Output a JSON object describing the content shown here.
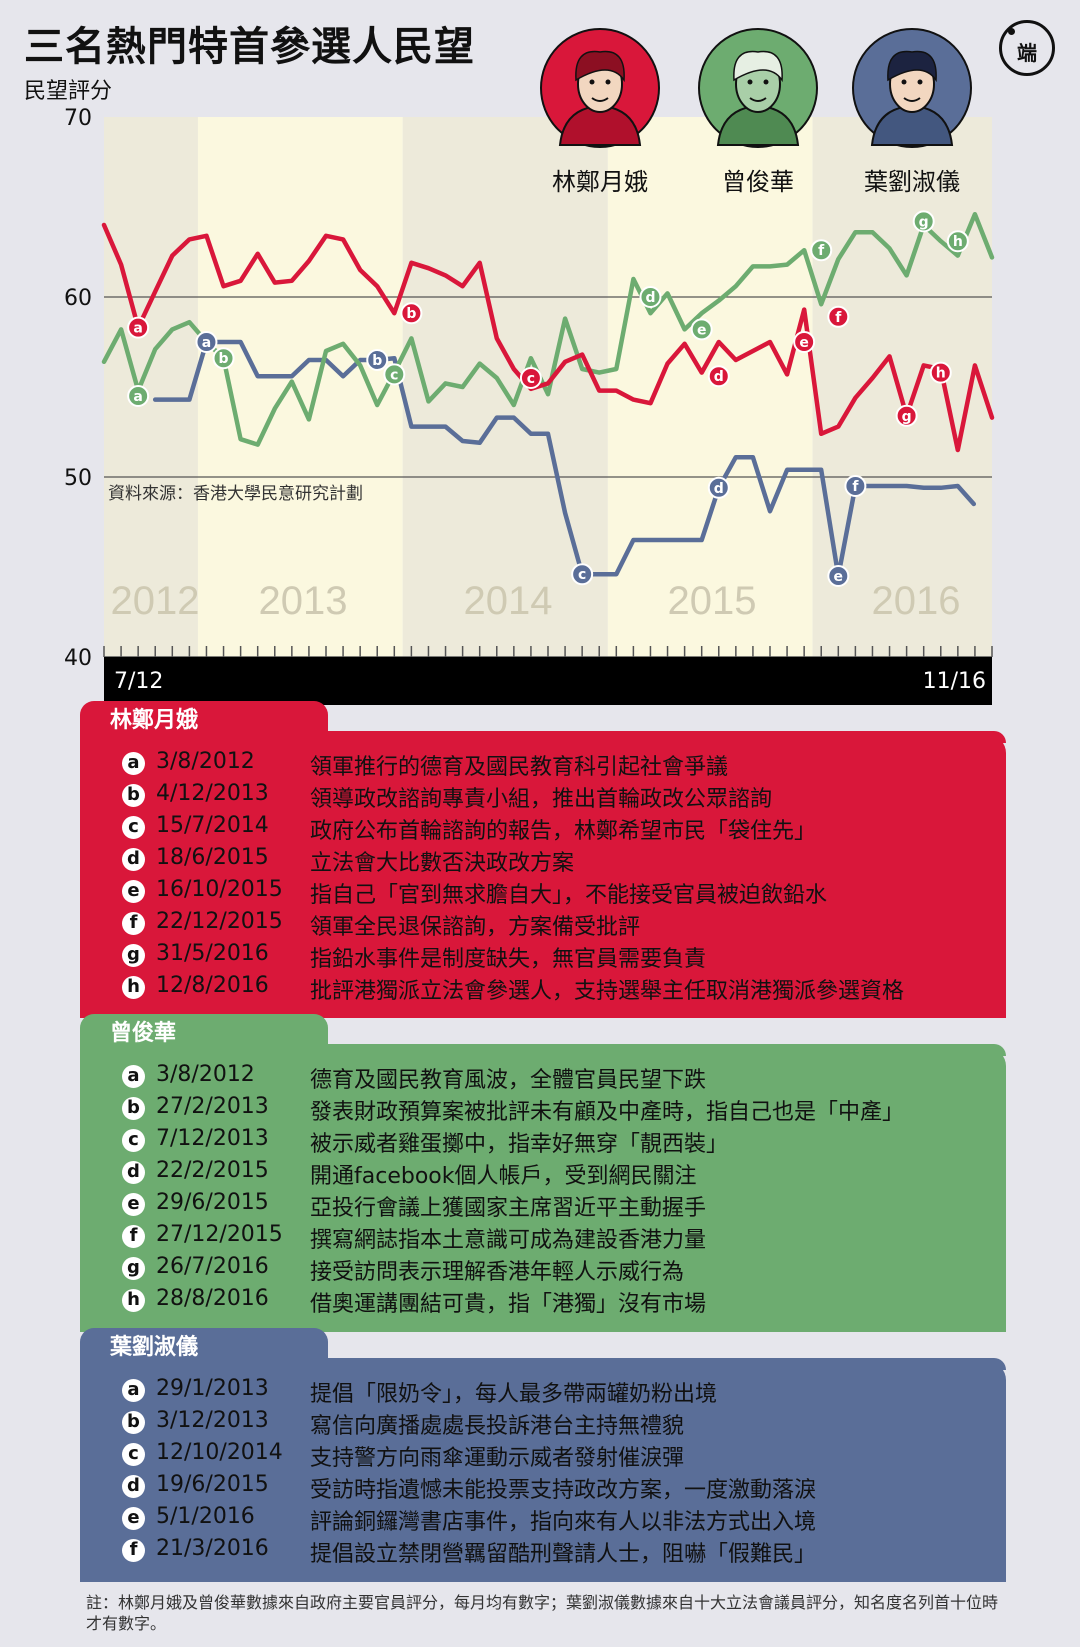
{
  "title": "三名熱門特首參選人民望",
  "logo_text": "端",
  "y_axis_label": "民望評分",
  "source": "資料來源：香港大學民意研究計劃",
  "footnote": "註：林鄭月娥及曾俊華數據來自政府主要官員評分，每月均有數字；葉劉淑儀數據來自十大立法會議員評分，知名度名列首十位時才有數字。",
  "colors": {
    "carrie": "#d9173a",
    "tsang": "#6dac70",
    "ip": "#5a6e98",
    "band_light": "#fbf8df",
    "band_dark": "#edeada"
  },
  "chart_data": {
    "type": "line",
    "ylabel": "民望評分",
    "ylim": [
      40,
      70
    ],
    "yticks": [
      40,
      50,
      60,
      70
    ],
    "x_start_label": "7/12",
    "x_end_label": "11/16",
    "year_labels": [
      "2012",
      "2013",
      "2014",
      "2015",
      "2016"
    ],
    "series": [
      {
        "name": "林鄭月娥",
        "color": "#d9173a",
        "values": [
          64.0,
          61.8,
          58.3,
          60.3,
          62.3,
          63.2,
          63.4,
          60.6,
          60.9,
          62.4,
          60.8,
          60.9,
          62.0,
          63.4,
          63.2,
          61.5,
          60.6,
          59.1,
          61.9,
          61.6,
          61.2,
          60.6,
          61.9,
          57.7,
          56.0,
          54.9,
          55.2,
          56.4,
          56.8,
          54.8,
          54.8,
          54.3,
          54.1,
          56.3,
          57.4,
          55.8,
          57.5,
          56.5,
          57.0,
          57.5,
          55.7,
          59.3,
          52.4,
          52.8,
          54.4,
          55.5,
          56.7,
          53.4,
          56.2,
          56.0,
          51.5,
          56.2,
          53.3
        ]
      },
      {
        "name": "曾俊華",
        "color": "#6dac70",
        "values": [
          56.4,
          58.2,
          54.8,
          57.1,
          58.2,
          58.6,
          57.5,
          56.6,
          52.1,
          51.8,
          53.8,
          55.3,
          53.2,
          57.0,
          57.4,
          56.2,
          54.0,
          55.8,
          57.7,
          54.2,
          55.2,
          55.0,
          56.3,
          55.5,
          54.0,
          56.6,
          54.6,
          58.8,
          56.0,
          55.8,
          56.0,
          61.0,
          59.1,
          60.2,
          58.2,
          59.1,
          59.8,
          60.6,
          61.7,
          61.7,
          61.8,
          62.6,
          59.6,
          62.1,
          63.6,
          63.6,
          62.7,
          61.2,
          64.0,
          63.1,
          62.3,
          64.6,
          62.2
        ]
      },
      {
        "name": "葉劉淑儀",
        "color": "#5a6e98",
        "values": [
          null,
          null,
          null,
          54.3,
          54.3,
          54.3,
          57.5,
          57.5,
          57.5,
          55.6,
          55.6,
          55.6,
          56.5,
          56.5,
          55.6,
          56.5,
          56.5,
          56.6,
          52.8,
          52.8,
          52.8,
          52.0,
          51.9,
          53.3,
          53.3,
          52.4,
          52.4,
          48.0,
          44.6,
          44.6,
          44.6,
          46.5,
          46.5,
          46.5,
          46.5,
          46.5,
          49.4,
          51.1,
          51.1,
          48.1,
          50.4,
          50.4,
          50.4,
          44.5,
          49.5,
          49.5,
          49.5,
          49.5,
          49.4,
          49.4,
          49.5,
          null,
          null
        ],
        "values_tail": [
          48.5
        ]
      }
    ],
    "event_markers": {
      "林鄭月娥": [
        [
          "a",
          2,
          58.3
        ],
        [
          "b",
          18,
          59.1
        ],
        [
          "c",
          25,
          55.5
        ],
        [
          "d",
          36,
          55.6
        ],
        [
          "e",
          41,
          57.5
        ],
        [
          "f",
          43,
          58.9
        ],
        [
          "g",
          47,
          53.4
        ],
        [
          "h",
          49,
          55.8
        ]
      ],
      "曾俊華": [
        [
          "a",
          2,
          54.5
        ],
        [
          "b",
          7,
          56.6
        ],
        [
          "c",
          17,
          55.7
        ],
        [
          "d",
          32,
          60.0
        ],
        [
          "e",
          35,
          58.2
        ],
        [
          "f",
          42,
          62.6
        ],
        [
          "g",
          48,
          64.2
        ],
        [
          "h",
          50,
          63.1
        ]
      ],
      "葉劉淑儀": [
        [
          "a",
          6,
          57.5
        ],
        [
          "b",
          16,
          56.5
        ],
        [
          "c",
          28,
          44.6
        ],
        [
          "d",
          36,
          49.4
        ],
        [
          "e",
          43,
          44.5
        ],
        [
          "f",
          44,
          49.5
        ]
      ]
    }
  },
  "candidates": [
    {
      "name": "林鄭月娥",
      "events": [
        {
          "key": "a",
          "date": "3/8/2012",
          "text": "領軍推行的德育及國民教育科引起社會爭議"
        },
        {
          "key": "b",
          "date": "4/12/2013",
          "text": "領導政改諮詢專責小組，推出首輪政改公眾諮詢"
        },
        {
          "key": "c",
          "date": "15/7/2014",
          "text": "政府公布首輪諮詢的報告，林鄭希望市民「袋住先」"
        },
        {
          "key": "d",
          "date": "18/6/2015",
          "text": "立法會大比數否決政改方案"
        },
        {
          "key": "e",
          "date": "16/10/2015",
          "text": "指自己「官到無求膽自大」，不能接受官員被迫飲鉛水"
        },
        {
          "key": "f",
          "date": "22/12/2015",
          "text": "領軍全民退保諮詢，方案備受批評"
        },
        {
          "key": "g",
          "date": "31/5/2016",
          "text": "指鉛水事件是制度缺失，無官員需要負責"
        },
        {
          "key": "h",
          "date": "12/8/2016",
          "text": "批評港獨派立法會參選人，支持選舉主任取消港獨派參選資格"
        }
      ]
    },
    {
      "name": "曾俊華",
      "events": [
        {
          "key": "a",
          "date": "3/8/2012",
          "text": "德育及國民教育風波，全體官員民望下跌"
        },
        {
          "key": "b",
          "date": "27/2/2013",
          "text": "發表財政預算案被批評未有顧及中產時，指自己也是「中產」"
        },
        {
          "key": "c",
          "date": "7/12/2013",
          "text": "被示威者雞蛋擲中，指幸好無穿「靚西裝」"
        },
        {
          "key": "d",
          "date": "22/2/2015",
          "text": "開通facebook個人帳戶，受到網民關注"
        },
        {
          "key": "e",
          "date": "29/6/2015",
          "text": "亞投行會議上獲國家主席習近平主動握手"
        },
        {
          "key": "f",
          "date": "27/12/2015",
          "text": "撰寫網誌指本土意識可成為建設香港力量"
        },
        {
          "key": "g",
          "date": "26/7/2016",
          "text": "接受訪問表示理解香港年輕人示威行為"
        },
        {
          "key": "h",
          "date": "28/8/2016",
          "text": "借奧運講團結可貴，指「港獨」沒有市場"
        }
      ]
    },
    {
      "name": "葉劉淑儀",
      "events": [
        {
          "key": "a",
          "date": "29/1/2013",
          "text": "提倡「限奶令」，每人最多帶兩罐奶粉出境"
        },
        {
          "key": "b",
          "date": "3/12/2013",
          "text": "寫信向廣播處處長投訴港台主持無禮貌"
        },
        {
          "key": "c",
          "date": "12/10/2014",
          "text": "支持警方向雨傘運動示威者發射催淚彈"
        },
        {
          "key": "d",
          "date": "19/6/2015",
          "text": "受訪時指遺憾未能投票支持政改方案，一度激動落淚"
        },
        {
          "key": "e",
          "date": "5/1/2016",
          "text": "評論銅鑼灣書店事件，指向來有人以非法方式出入境"
        },
        {
          "key": "f",
          "date": "21/3/2016",
          "text": "提倡設立禁閉營羈留酷刑聲請人士，阻嚇「假難民」"
        }
      ]
    }
  ]
}
